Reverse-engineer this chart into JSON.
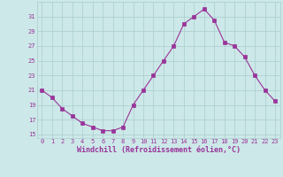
{
  "x": [
    0,
    1,
    2,
    3,
    4,
    5,
    6,
    7,
    8,
    9,
    10,
    11,
    12,
    13,
    14,
    15,
    16,
    17,
    18,
    19,
    20,
    21,
    22,
    23
  ],
  "y": [
    21,
    20,
    18.5,
    17.5,
    16.5,
    16,
    15.5,
    15.5,
    16,
    19,
    21,
    23,
    25,
    27,
    30,
    31,
    32,
    30.5,
    27.5,
    27,
    25.5,
    23,
    21,
    19.5
  ],
  "line_color": "#993399",
  "marker_color": "#993399",
  "bg_color": "#cce8e8",
  "grid_color": "#aacece",
  "xlabel": "Windchill (Refroidissement éolien,°C)",
  "xlabel_color": "#993399",
  "yticks": [
    15,
    17,
    19,
    21,
    23,
    25,
    27,
    29,
    31
  ],
  "xticks": [
    0,
    1,
    2,
    3,
    4,
    5,
    6,
    7,
    8,
    9,
    10,
    11,
    12,
    13,
    14,
    15,
    16,
    17,
    18,
    19,
    20,
    21,
    22,
    23
  ],
  "ylim": [
    14.5,
    33.0
  ],
  "xlim": [
    -0.5,
    23.5
  ],
  "tick_label_color": "#993399",
  "tick_fontsize": 5.0,
  "xlabel_fontsize": 6.0
}
